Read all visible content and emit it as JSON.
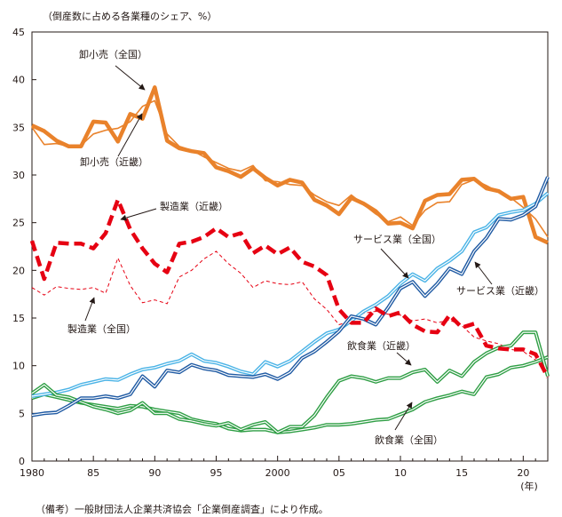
{
  "chart_data": {
    "type": "line",
    "ylabel": "（倒産数に占める各業種のシェア、%）",
    "xunit": "(年)",
    "note": "（備考）一般財団法人企業共済協会「企業倒産調査」により作成。",
    "ylim": [
      0,
      45
    ],
    "xlim": [
      1980,
      2022
    ],
    "y_ticks": [
      0,
      5,
      10,
      15,
      20,
      25,
      30,
      35,
      40,
      45
    ],
    "x_ticks": [
      {
        "value": 1980,
        "label": "1980"
      },
      {
        "value": 1985,
        "label": "85"
      },
      {
        "value": 1990,
        "label": "90"
      },
      {
        "value": 1995,
        "label": "95"
      },
      {
        "value": 2000,
        "label": "2000"
      },
      {
        "value": 2005,
        "label": "05"
      },
      {
        "value": 2010,
        "label": "10"
      },
      {
        "value": 2015,
        "label": "15"
      },
      {
        "value": 2020,
        "label": "20"
      }
    ],
    "grid": false,
    "legend": "inline labels",
    "x": [
      1980,
      1981,
      1982,
      1983,
      1984,
      1985,
      1986,
      1987,
      1988,
      1989,
      1990,
      1991,
      1992,
      1993,
      1994,
      1995,
      1996,
      1997,
      1998,
      1999,
      2000,
      2001,
      2002,
      2003,
      2004,
      2005,
      2006,
      2007,
      2008,
      2009,
      2010,
      2011,
      2012,
      2013,
      2014,
      2015,
      2016,
      2017,
      2018,
      2019,
      2020,
      2021,
      2022
    ],
    "series": [
      {
        "name": "卸小売（全国）",
        "color": "#e9822b",
        "style": "thin",
        "values": [
          35.0,
          33.2,
          33.3,
          33.0,
          33.1,
          34.3,
          34.7,
          34.9,
          35.6,
          37.2,
          37.8,
          34.3,
          33.0,
          32.6,
          31.9,
          31.3,
          30.7,
          30.4,
          31.0,
          29.4,
          29.3,
          29.0,
          28.9,
          27.9,
          27.2,
          26.8,
          27.9,
          26.9,
          25.9,
          25.1,
          25.6,
          24.7,
          26.3,
          27.1,
          27.2,
          29.0,
          29.5,
          28.9,
          28.2,
          27.6,
          26.6,
          25.4,
          23.5
        ]
      },
      {
        "name": "卸小売（近畿）",
        "color": "#e9822b",
        "style": "thick",
        "values": [
          35.2,
          34.6,
          33.6,
          33.0,
          33.0,
          35.6,
          35.5,
          33.5,
          36.4,
          35.9,
          39.2,
          33.6,
          32.8,
          32.5,
          32.3,
          30.8,
          30.4,
          29.8,
          30.7,
          29.7,
          28.9,
          29.5,
          29.2,
          27.4,
          26.8,
          25.9,
          27.6,
          27.0,
          26.2,
          24.9,
          25.0,
          24.4,
          27.3,
          27.9,
          28.0,
          29.5,
          29.6,
          28.6,
          28.3,
          27.5,
          27.7,
          23.5,
          22.9
        ]
      },
      {
        "name": "製造業（全国）",
        "color": "#e60012",
        "style": "thin-dash",
        "values": [
          18.2,
          17.4,
          18.3,
          18.1,
          18.0,
          18.2,
          17.6,
          21.3,
          18.4,
          16.6,
          16.9,
          16.5,
          19.3,
          20.0,
          21.2,
          22.0,
          20.7,
          19.7,
          18.2,
          18.9,
          18.6,
          18.5,
          18.8,
          17.0,
          15.9,
          14.3,
          14.7,
          15.5,
          15.7,
          15.4,
          15.3,
          14.7,
          14.9,
          14.5,
          14.8,
          14.2,
          13.0,
          12.6,
          12.3,
          11.7,
          11.5,
          10.6,
          9.6
        ]
      },
      {
        "name": "製造業（近畿）",
        "color": "#e60012",
        "style": "thick-dash",
        "values": [
          23.1,
          19.1,
          22.9,
          22.8,
          22.8,
          22.3,
          23.9,
          27.4,
          24.3,
          22.3,
          20.7,
          19.8,
          22.8,
          23.0,
          23.5,
          24.4,
          23.5,
          23.9,
          21.8,
          22.6,
          21.7,
          22.4,
          20.9,
          20.4,
          19.5,
          15.9,
          14.5,
          14.5,
          16.0,
          15.2,
          15.6,
          14.3,
          13.6,
          13.5,
          15.3,
          14.0,
          14.4,
          12.1,
          11.8,
          11.7,
          11.7,
          11.2,
          8.8
        ]
      },
      {
        "name": "サービス業（全国）",
        "color": "#4ab3e6",
        "style": "double",
        "values": [
          6.8,
          7.0,
          7.2,
          7.5,
          8.0,
          8.3,
          8.6,
          8.5,
          9.1,
          9.6,
          9.8,
          10.2,
          10.5,
          11.2,
          10.5,
          10.3,
          9.9,
          9.4,
          9.1,
          10.4,
          9.9,
          10.5,
          11.5,
          12.5,
          13.4,
          13.8,
          14.7,
          15.7,
          16.4,
          17.3,
          18.6,
          19.6,
          18.9,
          20.2,
          21.0,
          22.0,
          24.0,
          24.5,
          25.8,
          26.1,
          26.3,
          27.0,
          28.1
        ]
      },
      {
        "name": "サービス業（近畿）",
        "color": "#1f5aa3",
        "style": "double",
        "values": [
          4.8,
          5.0,
          5.1,
          5.8,
          6.6,
          6.6,
          6.8,
          6.6,
          7.0,
          8.9,
          7.8,
          9.5,
          9.3,
          10.1,
          9.7,
          9.5,
          9.0,
          8.9,
          8.8,
          9.1,
          8.6,
          9.3,
          10.8,
          11.5,
          12.5,
          13.6,
          15.2,
          14.9,
          14.3,
          16.1,
          18.1,
          18.8,
          17.3,
          18.6,
          20.2,
          19.6,
          22.0,
          23.4,
          25.4,
          25.3,
          25.8,
          26.7,
          29.8
        ]
      },
      {
        "name": "飲食業（全国）",
        "color": "#2e9e44",
        "style": "double",
        "values": [
          6.6,
          7.0,
          6.7,
          6.4,
          6.1,
          5.9,
          5.7,
          5.5,
          5.8,
          5.7,
          5.4,
          5.2,
          5.0,
          4.4,
          4.1,
          3.9,
          3.4,
          3.2,
          3.3,
          3.3,
          3.0,
          3.1,
          3.3,
          3.5,
          3.8,
          3.8,
          3.9,
          4.1,
          4.3,
          4.4,
          4.9,
          5.4,
          6.2,
          6.6,
          6.9,
          7.3,
          7.0,
          8.8,
          9.1,
          9.8,
          10.0,
          10.4,
          10.9
        ]
      },
      {
        "name": "飲食業（近畿）",
        "color": "#2e9e44",
        "style": "double",
        "values": [
          7.1,
          8.0,
          6.9,
          6.7,
          6.2,
          5.7,
          5.4,
          5.0,
          5.3,
          6.1,
          5.0,
          5.0,
          4.4,
          4.2,
          3.9,
          3.7,
          4.0,
          3.3,
          3.8,
          4.1,
          3.0,
          3.6,
          3.6,
          4.8,
          6.7,
          8.4,
          8.9,
          8.7,
          8.3,
          8.7,
          8.7,
          9.3,
          9.6,
          8.3,
          9.5,
          8.9,
          10.4,
          11.3,
          11.9,
          12.1,
          13.5,
          13.5,
          8.9
        ]
      }
    ],
    "annotations": [
      {
        "label": "卸小売（全国）"
      },
      {
        "label": "卸小売（近畿）"
      },
      {
        "label": "製造業（近畿）"
      },
      {
        "label": "製造業（全国）"
      },
      {
        "label": "サービス業（全国）"
      },
      {
        "label": "サービス業（近畿）"
      },
      {
        "label": "飲食業（近畿）"
      },
      {
        "label": "飲食業（全国）"
      }
    ]
  }
}
